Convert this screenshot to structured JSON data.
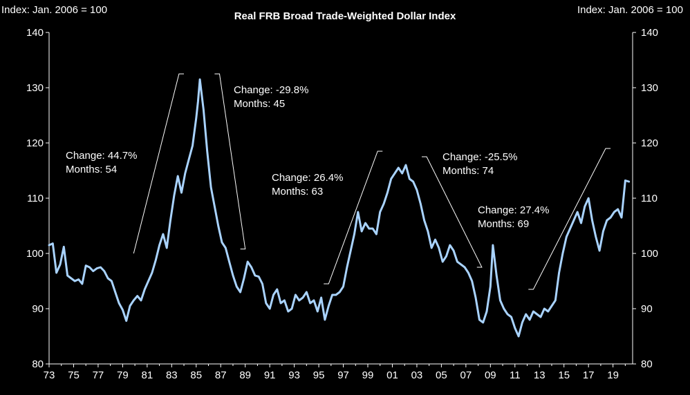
{
  "header": {
    "title": "Real FRB Broad Trade-Weighted Dollar Index",
    "unit_left": "Index: Jan. 2006 = 100",
    "unit_right": "Index: Jan. 2006 = 100"
  },
  "colors": {
    "background": "#000000",
    "series": "#a9d3ff",
    "text": "#ffffff"
  },
  "chart_data": {
    "type": "line",
    "title": "Real FRB Broad Trade-Weighted Dollar Index",
    "ylabel": "Index: Jan. 2006 = 100",
    "xlabel": "",
    "xlim": [
      1973,
      2020.6
    ],
    "ylim": [
      80,
      140
    ],
    "y_ticks": [
      "80",
      "90",
      "100",
      "110",
      "120",
      "130",
      "140"
    ],
    "x_ticks": [
      "73",
      "75",
      "77",
      "79",
      "81",
      "83",
      "85",
      "87",
      "89",
      "91",
      "93",
      "95",
      "97",
      "99",
      "01",
      "03",
      "05",
      "07",
      "09",
      "11",
      "13",
      "15",
      "17",
      "19"
    ],
    "grid": false,
    "series": [
      {
        "x": [
          1973.0,
          1973.3,
          1973.6,
          1973.9,
          1974.2,
          1974.5,
          1974.8,
          1975.1,
          1975.4,
          1975.7,
          1976.0,
          1976.3,
          1976.6,
          1976.9,
          1977.2,
          1977.5,
          1977.8,
          1978.1,
          1978.4,
          1978.7,
          1979.0,
          1979.3,
          1979.6,
          1979.9,
          1980.2,
          1980.5,
          1980.8,
          1981.1,
          1981.4,
          1981.7,
          1982.0,
          1982.3,
          1982.6,
          1982.9,
          1983.2,
          1983.5,
          1983.8,
          1984.1,
          1984.4,
          1984.7,
          1985.0,
          1985.15,
          1985.3,
          1985.6,
          1985.9,
          1986.2,
          1986.5,
          1986.8,
          1987.1,
          1987.4,
          1987.7,
          1988.0,
          1988.3,
          1988.6,
          1988.9,
          1989.2,
          1989.5,
          1989.8,
          1990.1,
          1990.4,
          1990.7,
          1991.0,
          1991.3,
          1991.6,
          1991.9,
          1992.2,
          1992.5,
          1992.8,
          1993.1,
          1993.4,
          1993.7,
          1994.0,
          1994.3,
          1994.6,
          1994.9,
          1995.2,
          1995.5,
          1995.8,
          1996.1,
          1996.4,
          1996.7,
          1997.0,
          1997.3,
          1997.6,
          1997.9,
          1998.2,
          1998.5,
          1998.8,
          1999.1,
          1999.4,
          1999.7,
          2000.0,
          2000.3,
          2000.6,
          2000.9,
          2001.2,
          2001.5,
          2001.8,
          2002.1,
          2002.4,
          2002.7,
          2003.0,
          2003.3,
          2003.6,
          2003.9,
          2004.2,
          2004.5,
          2004.8,
          2005.1,
          2005.4,
          2005.7,
          2006.0,
          2006.3,
          2006.6,
          2006.9,
          2007.2,
          2007.5,
          2007.8,
          2008.1,
          2008.4,
          2008.7,
          2009.0,
          2009.2,
          2009.5,
          2009.8,
          2010.1,
          2010.4,
          2010.7,
          2011.0,
          2011.3,
          2011.6,
          2011.9,
          2012.2,
          2012.5,
          2012.8,
          2013.1,
          2013.4,
          2013.7,
          2014.0,
          2014.3,
          2014.6,
          2014.9,
          2015.2,
          2015.5,
          2015.8,
          2016.1,
          2016.4,
          2016.7,
          2017.0,
          2017.3,
          2017.6,
          2017.9,
          2018.2,
          2018.5,
          2018.8,
          2019.1,
          2019.4,
          2019.7,
          2020.0,
          2020.3
        ],
        "y": [
          101.5,
          101.8,
          96.5,
          98.0,
          101.2,
          96.0,
          95.5,
          95.0,
          95.3,
          94.5,
          97.8,
          97.5,
          96.8,
          97.3,
          97.5,
          96.8,
          95.5,
          95.0,
          93.0,
          91.0,
          89.8,
          87.8,
          90.5,
          91.5,
          92.3,
          91.5,
          93.5,
          95.0,
          96.5,
          98.8,
          101.5,
          103.5,
          101.0,
          106.0,
          110.5,
          114.0,
          111.0,
          114.5,
          117.0,
          119.5,
          124.5,
          127.5,
          131.5,
          126.0,
          118.5,
          112.0,
          108.5,
          105.0,
          102.0,
          101.0,
          98.5,
          96.0,
          94.0,
          93.0,
          95.5,
          98.5,
          97.5,
          96.0,
          95.8,
          94.5,
          91.0,
          90.0,
          92.5,
          93.5,
          91.0,
          91.5,
          89.5,
          90.0,
          92.5,
          91.5,
          92.0,
          93.0,
          91.0,
          91.5,
          89.5,
          92.0,
          88.0,
          90.5,
          92.5,
          92.5,
          93.0,
          94.0,
          97.5,
          100.5,
          103.5,
          107.5,
          104.0,
          105.5,
          104.5,
          104.5,
          103.5,
          107.5,
          109.0,
          111.0,
          113.5,
          114.5,
          115.5,
          114.5,
          116.0,
          113.5,
          113.0,
          111.5,
          109.0,
          106.0,
          104.0,
          101.0,
          102.5,
          101.0,
          98.5,
          99.5,
          101.5,
          100.5,
          98.5,
          98.0,
          97.5,
          96.5,
          95.0,
          92.0,
          88.0,
          87.5,
          89.5,
          94.0,
          101.5,
          96.0,
          91.5,
          90.0,
          89.0,
          88.5,
          86.5,
          85.0,
          87.5,
          89.0,
          88.0,
          89.5,
          89.0,
          88.5,
          90.0,
          89.5,
          90.5,
          91.5,
          96.5,
          100.0,
          103.0,
          104.5,
          106.0,
          107.5,
          105.5,
          108.5,
          110.0,
          106.0,
          103.0,
          100.5,
          104.0,
          106.0,
          106.5,
          107.5,
          108.0,
          106.5,
          113.2,
          113.0
        ]
      }
    ],
    "annotations": [
      {
        "change": "Change:  44.7%",
        "months": "Months: 54"
      },
      {
        "change": "Change:  -29.8%",
        "months": "Months: 45"
      },
      {
        "change": "Change:  26.4%",
        "months": "Months: 63"
      },
      {
        "change": "Change:  -25.5%",
        "months": "Months: 74"
      },
      {
        "change": "Change:  27.4%",
        "months": "Months: 69"
      }
    ]
  }
}
